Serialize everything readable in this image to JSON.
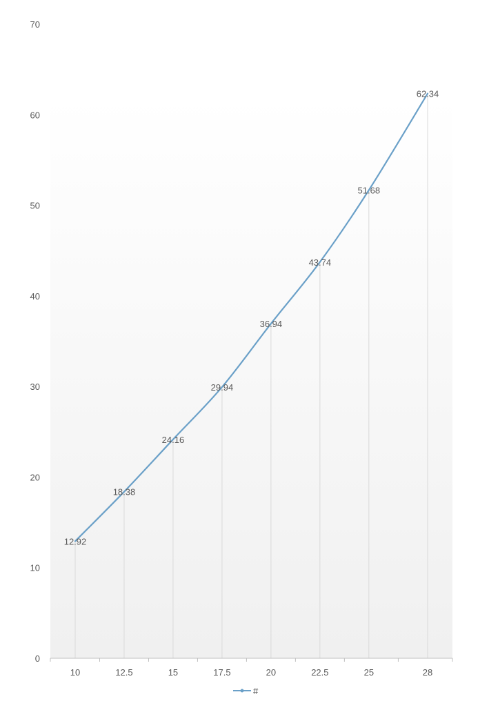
{
  "chart_data": {
    "type": "line",
    "x": [
      10,
      12.5,
      15,
      17.5,
      20,
      22.5,
      25,
      28
    ],
    "x_tick_labels": [
      "10",
      "12.5",
      "15",
      "17.5",
      "20",
      "22.5",
      "25",
      "28"
    ],
    "series": [
      {
        "name": "#",
        "values": [
          12.92,
          18.38,
          24.16,
          29.94,
          36.94,
          43.74,
          51.68,
          62.34
        ],
        "data_labels": [
          "12.92",
          "18.38",
          "24.16",
          "29.94",
          "36.94",
          "43.74",
          "51.68",
          "62.34"
        ],
        "color": "#6aa0c8"
      }
    ],
    "ylim": [
      0,
      70
    ],
    "y_ticks": [
      0,
      10,
      20,
      30,
      40,
      50,
      60,
      70
    ],
    "y_tick_labels": [
      "0",
      "10",
      "20",
      "30",
      "40",
      "50",
      "60",
      "70"
    ],
    "title": "",
    "xlabel": "",
    "ylabel": "",
    "grid": "vertical drop lines at each category",
    "legend": {
      "placement": "bottom",
      "entries": [
        "#"
      ]
    },
    "colors": {
      "line": "#6aa0c8",
      "drop_lines": "#d9d9d9",
      "axis": "#bfbfbf",
      "tick_text": "#595959",
      "data_label_text": "#595959",
      "plot_gradient_top": "#ffffff",
      "plot_gradient_bottom": "#f0f0f0"
    }
  }
}
